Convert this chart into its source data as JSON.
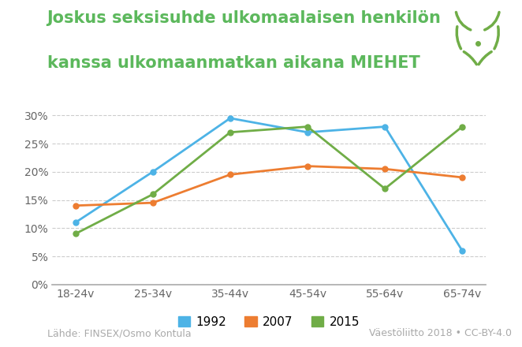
{
  "title_line1": "Joskus seksisuhde ulkomaalaisen henkilön",
  "title_line2": "kanssa ulkomaanmatkan aikana MIEHET",
  "categories": [
    "18-24v",
    "25-34v",
    "35-44v",
    "45-54v",
    "55-64v",
    "65-74v"
  ],
  "series": [
    {
      "label": "1992",
      "color": "#4db3e6",
      "values": [
        11,
        20,
        29.5,
        27,
        28,
        6
      ]
    },
    {
      "label": "2007",
      "color": "#ed7d31",
      "values": [
        14,
        14.5,
        19.5,
        21,
        20.5,
        19
      ]
    },
    {
      "label": "2015",
      "color": "#70ad47",
      "values": [
        9,
        16,
        27,
        28,
        17,
        28
      ]
    }
  ],
  "ylim": [
    0,
    0.32
  ],
  "yticks": [
    0.0,
    0.05,
    0.1,
    0.15,
    0.2,
    0.25,
    0.3
  ],
  "ytick_labels": [
    "0%",
    "5%",
    "10%",
    "15%",
    "20%",
    "25%",
    "30%"
  ],
  "grid_color": "#cccccc",
  "background_color": "#ffffff",
  "title_color": "#5cb85c",
  "title_fontsize": 15,
  "axis_label_fontsize": 10,
  "legend_fontsize": 11,
  "footer_left": "Lähde: FINSEX/Osmo Kontula",
  "footer_right": "Väestöliitto 2018 • CC-BY-4.0",
  "footer_fontsize": 9,
  "line_width": 2.0,
  "marker": "o",
  "marker_size": 5,
  "logo_color": "#70ad47"
}
